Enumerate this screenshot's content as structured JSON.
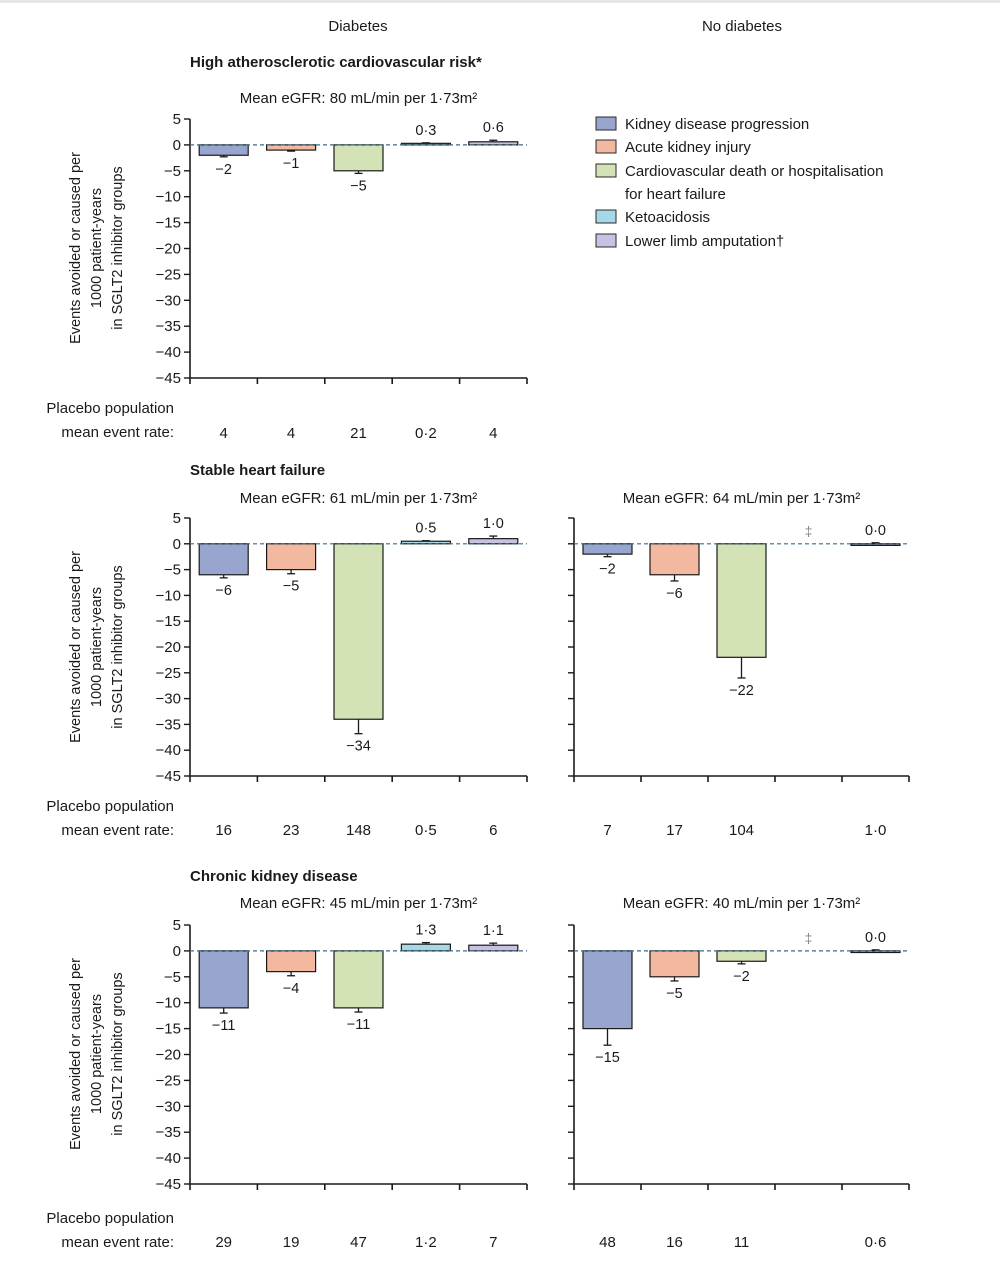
{
  "column_headers": {
    "diabetes": "Diabetes",
    "no_diabetes": "No diabetes"
  },
  "legend": [
    {
      "key": "kidney",
      "label": "Kidney disease progression",
      "color": "#98a6cf"
    },
    {
      "key": "aki",
      "label": "Acute kidney injury",
      "color": "#f2b8a0"
    },
    {
      "key": "cv",
      "label": "Cardiovascular death or hospitalisation",
      "label2": "for heart failure",
      "color": "#d3e3b6"
    },
    {
      "key": "keto",
      "label": "Ketoacidosis",
      "color": "#a6d8e8"
    },
    {
      "key": "amp",
      "label": "Lower limb amputation†",
      "color": "#c8c1e3"
    }
  ],
  "y_axis": {
    "label_lines": [
      "Events avoided or caused per",
      "1000 patient-years",
      "in SGLT2 inhibitor groups"
    ],
    "ticks": [
      5,
      0,
      -5,
      -10,
      -15,
      -20,
      -25,
      -30,
      -35,
      -40,
      -45
    ],
    "range": [
      -45,
      5
    ]
  },
  "placebo_label": [
    "Placebo population",
    "mean event rate:"
  ],
  "chart_data": [
    {
      "type": "bar",
      "section_title": "High atherosclerotic cardiovascular risk*",
      "title": "Mean eGFR: 80 mL/min per 1·73m²",
      "column": "Diabetes",
      "ylabel": "Events avoided or caused per 1000 patient-years in SGLT2 inhibitor groups",
      "ylim": [
        -45,
        5
      ],
      "categories": [
        "Kidney disease progression",
        "Acute kidney injury",
        "Cardiovascular death or hospitalisation for heart failure",
        "Ketoacidosis",
        "Lower limb amputation†"
      ],
      "values": [
        -2,
        -1,
        -5,
        0.3,
        0.6
      ],
      "errors": [
        0.3,
        0.2,
        0.5,
        0.1,
        0.3
      ],
      "value_labels": [
        "−2",
        "−1",
        "−5",
        "0·3",
        "0·6"
      ],
      "placebo_rates": [
        "4",
        "4",
        "21",
        "0·2",
        "4"
      ]
    },
    {
      "type": "bar",
      "section_title": "Stable heart failure",
      "title": "Mean eGFR: 61 mL/min per 1·73m²",
      "column": "Diabetes",
      "ylim": [
        -45,
        5
      ],
      "categories": [
        "Kidney disease progression",
        "Acute kidney injury",
        "Cardiovascular death or hospitalisation for heart failure",
        "Ketoacidosis",
        "Lower limb amputation†"
      ],
      "values": [
        -6,
        -5,
        -34,
        0.5,
        1.0
      ],
      "errors": [
        0.6,
        0.8,
        2.8,
        0.1,
        0.5
      ],
      "value_labels": [
        "−6",
        "−5",
        "−34",
        "0·5",
        "1·0"
      ],
      "placebo_rates": [
        "16",
        "23",
        "148",
        "0·5",
        "6"
      ]
    },
    {
      "type": "bar",
      "title": "Mean eGFR: 64 mL/min per 1·73m²",
      "column": "No diabetes",
      "ylim": [
        -45,
        5
      ],
      "categories": [
        "Kidney disease progression",
        "Acute kidney injury",
        "Cardiovascular death or hospitalisation for heart failure",
        "Ketoacidosis",
        "Lower limb amputation†"
      ],
      "values": [
        -2,
        -6,
        -22,
        null,
        0.0
      ],
      "errors": [
        0.5,
        1.2,
        4.0,
        null,
        0.2
      ],
      "value_labels": [
        "−2",
        "−6",
        "−22",
        "‡",
        "0·0"
      ],
      "placebo_rates": [
        "7",
        "17",
        "104",
        "",
        "1·0"
      ]
    },
    {
      "type": "bar",
      "section_title": "Chronic kidney disease",
      "title": "Mean eGFR: 45 mL/min per 1·73m²",
      "column": "Diabetes",
      "ylim": [
        -45,
        5
      ],
      "categories": [
        "Kidney disease progression",
        "Acute kidney injury",
        "Cardiovascular death or hospitalisation for heart failure",
        "Ketoacidosis",
        "Lower limb amputation†"
      ],
      "values": [
        -11,
        -4,
        -11,
        1.3,
        1.1
      ],
      "errors": [
        1.0,
        0.8,
        0.8,
        0.3,
        0.4
      ],
      "value_labels": [
        "−11",
        "−4",
        "−11",
        "1·3",
        "1·1"
      ],
      "placebo_rates": [
        "29",
        "19",
        "47",
        "1·2",
        "7"
      ]
    },
    {
      "type": "bar",
      "title": "Mean eGFR: 40 mL/min per 1·73m²",
      "column": "No diabetes",
      "ylim": [
        -45,
        5
      ],
      "categories": [
        "Kidney disease progression",
        "Acute kidney injury",
        "Cardiovascular death or hospitalisation for heart failure",
        "Ketoacidosis",
        "Lower limb amputation†"
      ],
      "values": [
        -15,
        -5,
        -2,
        null,
        0.0
      ],
      "errors": [
        3.2,
        0.8,
        0.5,
        null,
        0.2
      ],
      "value_labels": [
        "−15",
        "−5",
        "−2",
        "‡",
        "0·0"
      ],
      "placebo_rates": [
        "48",
        "16",
        "11",
        "",
        "0·6"
      ]
    }
  ]
}
